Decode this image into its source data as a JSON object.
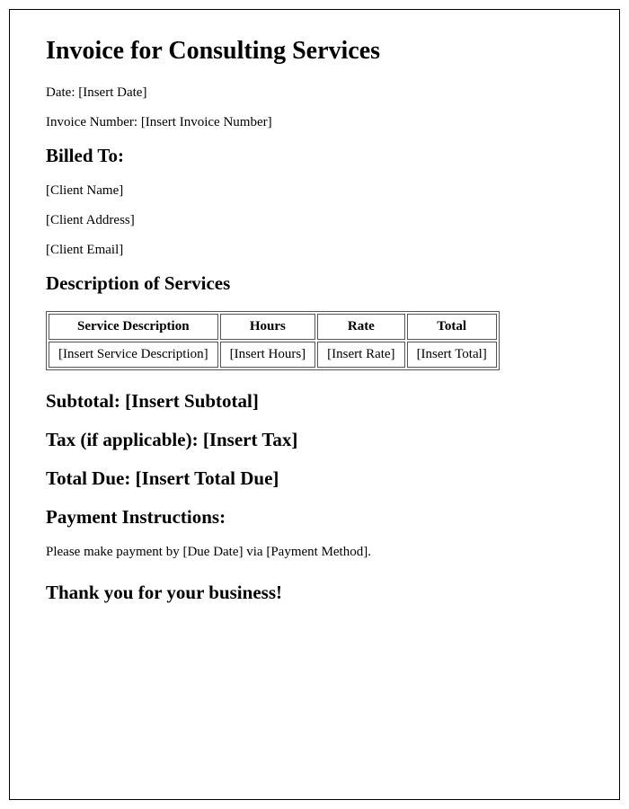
{
  "title": "Invoice for Consulting Services",
  "date": {
    "label": "Date:",
    "value": "[Insert Date]"
  },
  "invoice_number": {
    "label": "Invoice Number:",
    "value": "[Insert Invoice Number]"
  },
  "billed_to": {
    "heading": "Billed To:",
    "name": "[Client Name]",
    "address": "[Client Address]",
    "email": "[Client Email]"
  },
  "services": {
    "heading": "Description of Services",
    "headers": {
      "description": "Service Description",
      "hours": "Hours",
      "rate": "Rate",
      "total": "Total"
    },
    "row": {
      "description": "[Insert Service Description]",
      "hours": "[Insert Hours]",
      "rate": "[Insert Rate]",
      "total": "[Insert Total]"
    }
  },
  "subtotal": {
    "label": "Subtotal:",
    "value": "[Insert Subtotal]"
  },
  "tax": {
    "label": "Tax (if applicable):",
    "value": "[Insert Tax]"
  },
  "total_due": {
    "label": "Total Due:",
    "value": "[Insert Total Due]"
  },
  "payment": {
    "heading": "Payment Instructions:",
    "text": "Please make payment by [Due Date] via [Payment Method]."
  },
  "thankyou": "Thank you for your business!"
}
